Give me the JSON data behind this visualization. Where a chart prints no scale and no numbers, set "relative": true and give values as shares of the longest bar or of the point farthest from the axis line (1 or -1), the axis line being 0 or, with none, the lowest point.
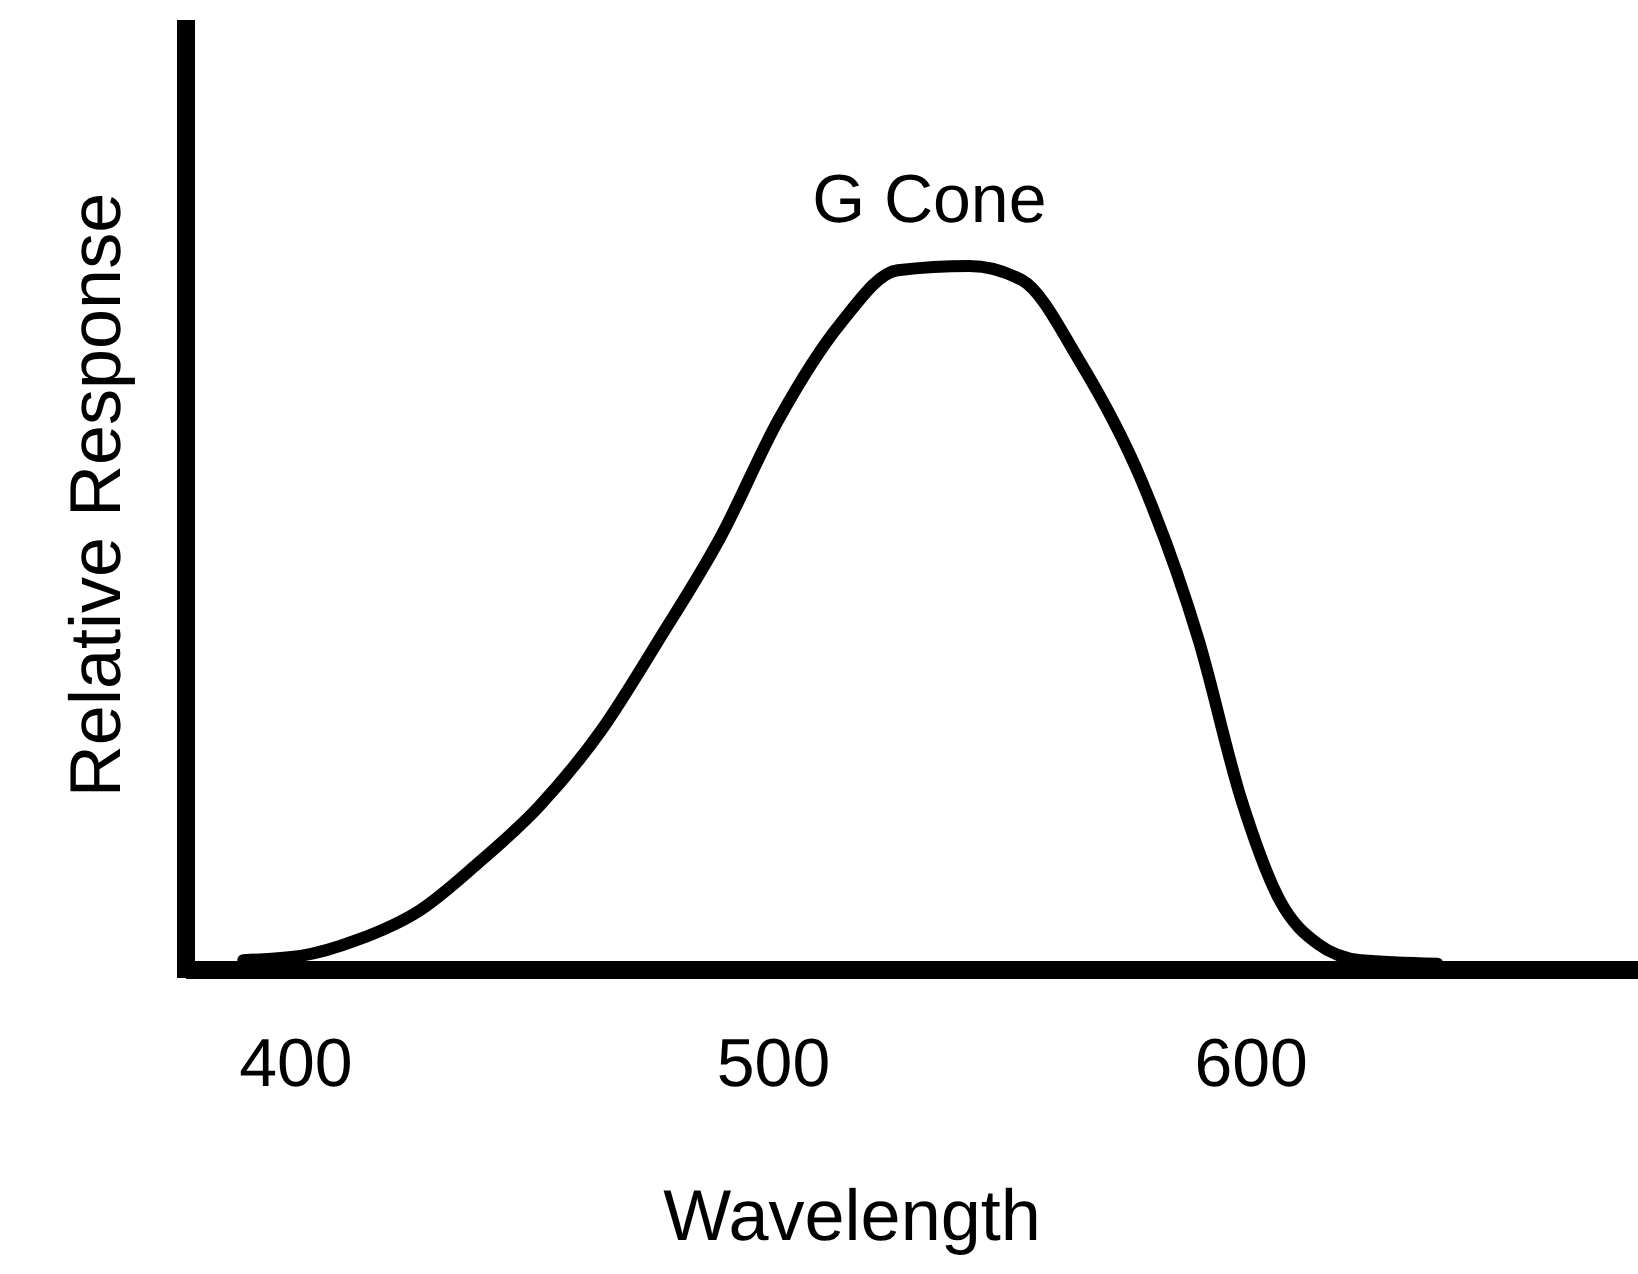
{
  "chart_data": {
    "type": "line",
    "relative": true,
    "xlabel": "Wavelength",
    "ylabel": "Relative Response",
    "xlim": [
      377,
      681
    ],
    "xticks": [
      400,
      500,
      600
    ],
    "marker": "none",
    "line_style": "solid",
    "series": [
      {
        "name": "G Cone",
        "color": "#000000",
        "x": [
          389,
          401,
          413,
          426,
          438,
          451,
          464,
          476,
          489,
          501,
          514,
          526,
          541,
          552,
          564,
          577,
          589,
          598,
          606,
          614,
          623,
          639
        ],
        "values": [
          0.014,
          0.02,
          0.043,
          0.085,
          0.151,
          0.233,
          0.341,
          0.469,
          0.616,
          0.781,
          0.918,
          0.994,
          1,
          0.98,
          0.866,
          0.696,
          0.469,
          0.241,
          0.099,
          0.037,
          0.014,
          0.009
        ]
      }
    ]
  }
}
